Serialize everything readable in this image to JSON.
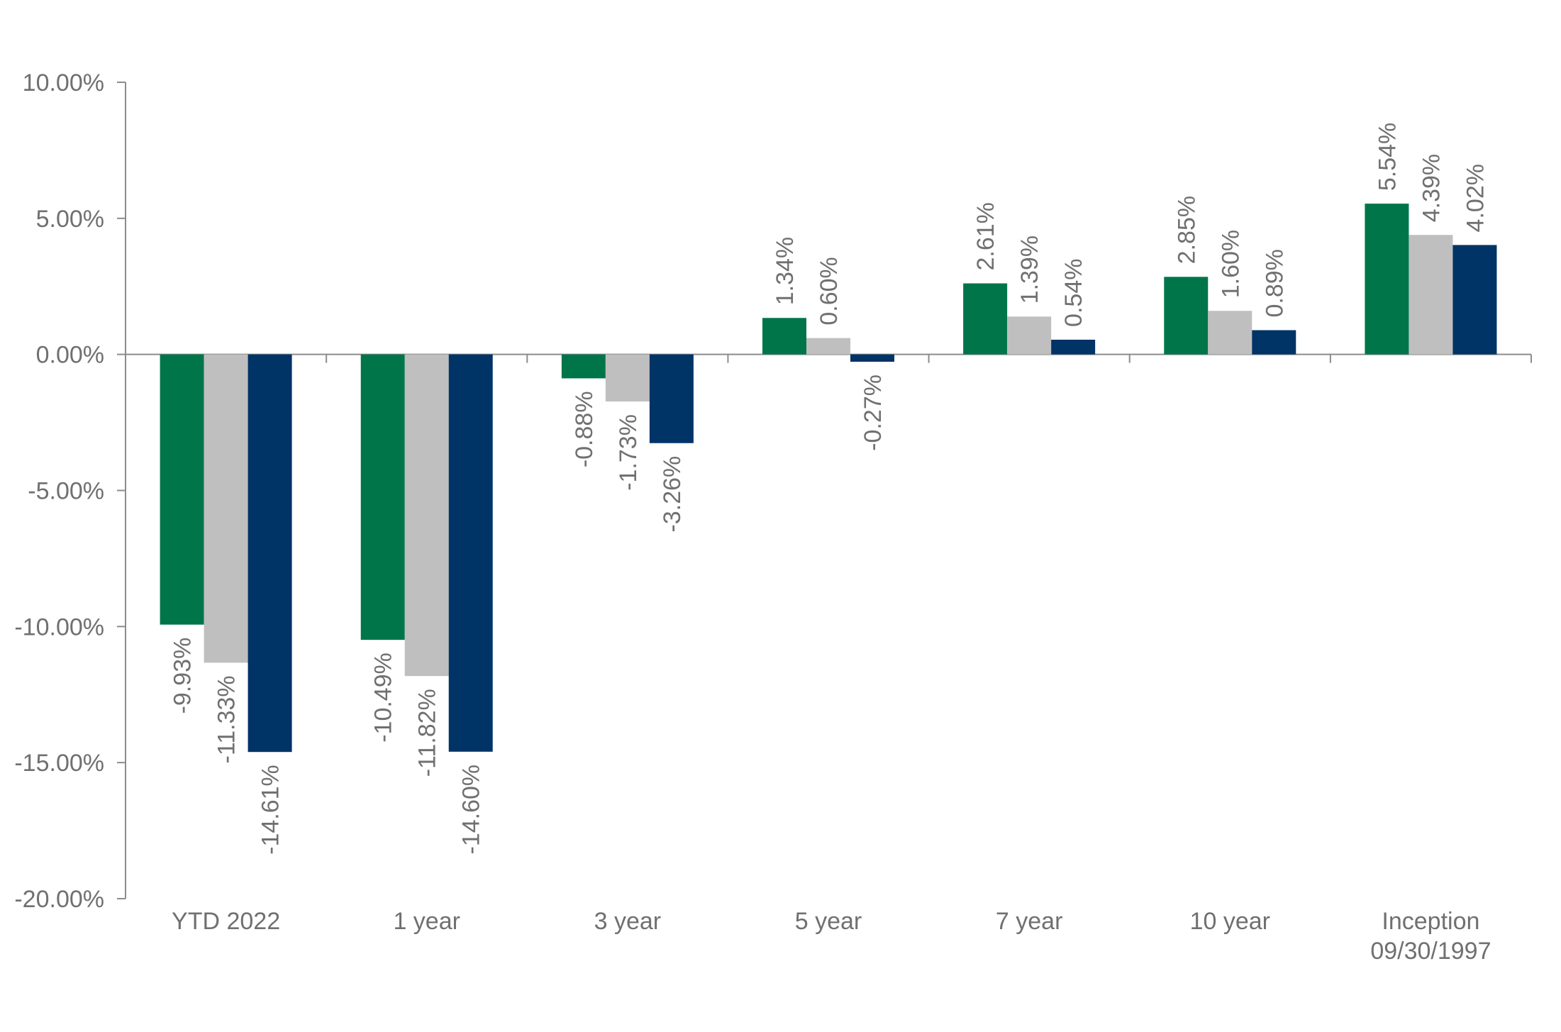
{
  "chart_data": {
    "type": "bar",
    "title": "",
    "xlabel": "",
    "ylabel": "",
    "ylim": [
      -20,
      10
    ],
    "yticks": [
      10,
      5,
      0,
      -5,
      -10,
      -15,
      -20
    ],
    "ytick_labels": [
      "10.00%",
      "5.00%",
      "0.00%",
      "-5.00%",
      "-10.00%",
      "-15.00%",
      "-20.00%"
    ],
    "categories": [
      "YTD 2022",
      "1 year",
      "3 year",
      "5 year",
      "7 year",
      "10 year",
      "Inception 09/30/1997"
    ],
    "category_lines": [
      [
        "YTD 2022"
      ],
      [
        "1 year"
      ],
      [
        "3 year"
      ],
      [
        "5 year"
      ],
      [
        "7 year"
      ],
      [
        "10 year"
      ],
      [
        "Inception",
        "09/30/1997"
      ]
    ],
    "series": [
      {
        "name": "Series 1",
        "color": "#00754a",
        "values": [
          -9.93,
          -10.49,
          -0.88,
          1.34,
          2.61,
          2.85,
          5.54
        ],
        "labels": [
          "-9.93%",
          "-10.49%",
          "-0.88%",
          "1.34%",
          "2.61%",
          "2.85%",
          "5.54%"
        ]
      },
      {
        "name": "Series 2",
        "color": "#bfbfbf",
        "values": [
          -11.33,
          -11.82,
          -1.73,
          0.6,
          1.39,
          1.6,
          4.39
        ],
        "labels": [
          "-11.33%",
          "-11.82%",
          "-1.73%",
          "0.60%",
          "1.39%",
          "1.60%",
          "4.39%"
        ]
      },
      {
        "name": "Series 3",
        "color": "#003366",
        "values": [
          -14.61,
          -14.6,
          -3.26,
          -0.27,
          0.54,
          0.89,
          4.02
        ],
        "labels": [
          "-14.61%",
          "-14.60%",
          "-3.26%",
          "-0.27%",
          "0.54%",
          "0.89%",
          "4.02%"
        ]
      }
    ],
    "grid": false,
    "legend": "none"
  }
}
